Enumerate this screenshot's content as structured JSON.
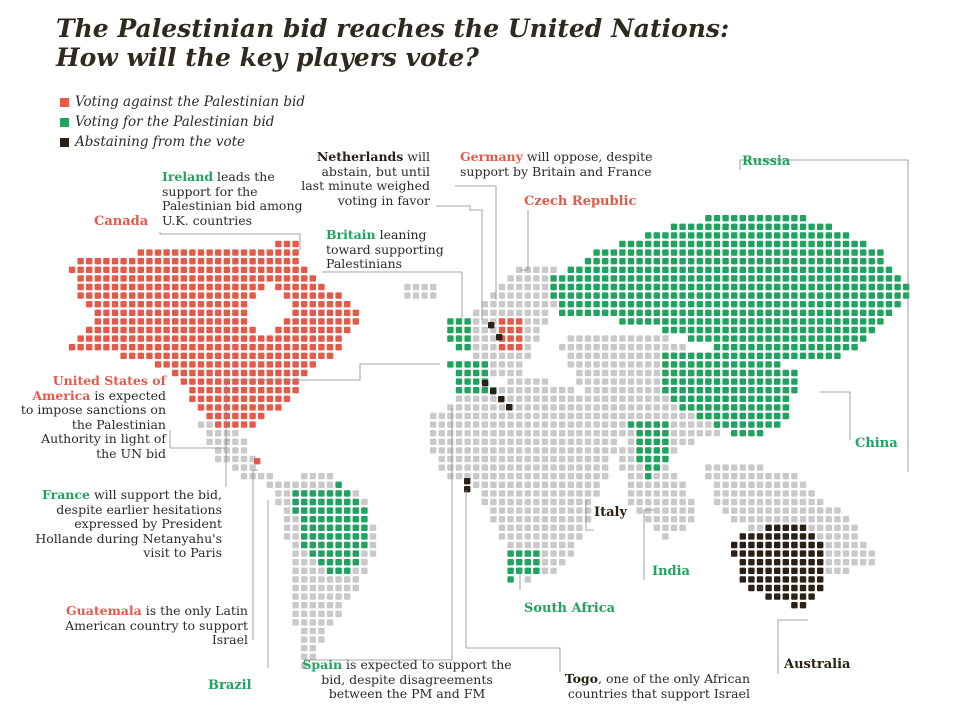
{
  "title_line1": "The Palestinian bid reaches the United Nations:",
  "title_line2": "How will the key players vote?",
  "legend": [
    {
      "label": "Voting against the Palestinian bid",
      "color": "#e35a4a"
    },
    {
      "label": "Voting for the Palestinian bid",
      "color": "#1fa35f"
    },
    {
      "label": "Abstaining from the vote",
      "color": "#2a2016"
    }
  ],
  "colors": {
    "against": "#e35a4a",
    "for": "#1fa35f",
    "abstain": "#2a2016",
    "neutral": "#c9c9c9",
    "leader": "#8a8a8a"
  },
  "annotations": {
    "ireland": {
      "name": "Ireland",
      "text": " leads the support for the Palestinian bid among U.K. countries"
    },
    "netherlands": {
      "name": "Netherlands",
      "text": " will abstain, but until last minute weighed voting in favor"
    },
    "germany": {
      "name": "Germany",
      "text": " will oppose, despite support by Britain and France"
    },
    "britain": {
      "name": "Britain",
      "text": " leaning toward supporting Palestinians"
    },
    "usa": {
      "name": "United States of America",
      "text": " is expected to impose sanctions on the Palestinian Authority in light of the UN bid"
    },
    "france": {
      "name": "France",
      "text": " will support the bid, despite earlier hesitations expressed by President Hollande during Netanyahu's visit to Paris"
    },
    "guatemala": {
      "name": "Guatemala",
      "text": " is the only Latin American country to support Israel"
    },
    "spain": {
      "name": "Spain",
      "text": " is expected to support the bid, despite disagreements between the PM and FM"
    },
    "togo": {
      "name": "Togo",
      "text": ", one of the only African countries that support Israel"
    }
  },
  "tags": {
    "canada": "Canada",
    "czech": "Czech Republic",
    "russia": "Russia",
    "china": "China",
    "italy": "Italy",
    "india": "India",
    "south_africa": "South Africa",
    "australia": "Australia",
    "brazil": "Brazil"
  }
}
